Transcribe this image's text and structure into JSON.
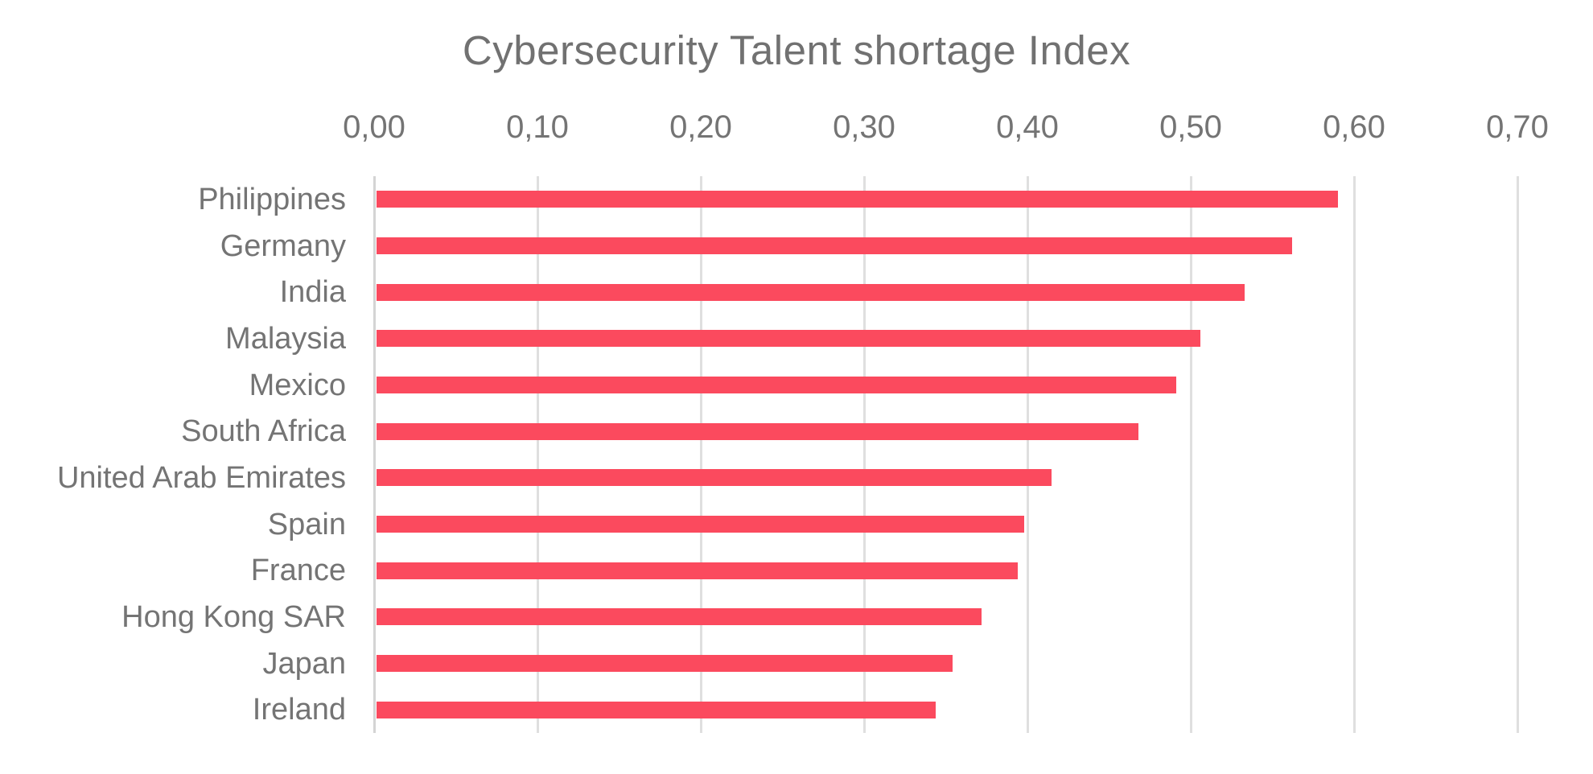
{
  "chart_data": {
    "type": "bar",
    "orientation": "horizontal",
    "title": "Cybersecurity Talent shortage Index",
    "categories": [
      "Philippines",
      "Germany",
      "India",
      "Malaysia",
      "Mexico",
      "South Africa",
      "United Arab Emirates",
      "Spain",
      "France",
      "Hong Kong SAR",
      "Japan",
      "Ireland"
    ],
    "values": [
      0.59,
      0.562,
      0.533,
      0.506,
      0.491,
      0.468,
      0.415,
      0.398,
      0.394,
      0.372,
      0.354,
      0.344
    ],
    "x_tick_labels": [
      "0,00",
      "0,10",
      "0,20",
      "0,30",
      "0,40",
      "0,50",
      "0,60",
      "0,70"
    ],
    "x_tick_values": [
      0.0,
      0.1,
      0.2,
      0.3,
      0.4,
      0.5,
      0.6,
      0.7
    ],
    "xlim": [
      0,
      0.7
    ],
    "decimal_separator": ",",
    "xlabel": "",
    "ylabel": "",
    "grid": "vertical-gridlines-on",
    "legend": "none",
    "colors": {
      "bar": "#FB4A5E",
      "title_text": "#717171",
      "axis_text": "#747474",
      "gridline": "#DFDFDF",
      "axis_line": "#D4D4D4",
      "background": "#FFFFFF"
    }
  }
}
